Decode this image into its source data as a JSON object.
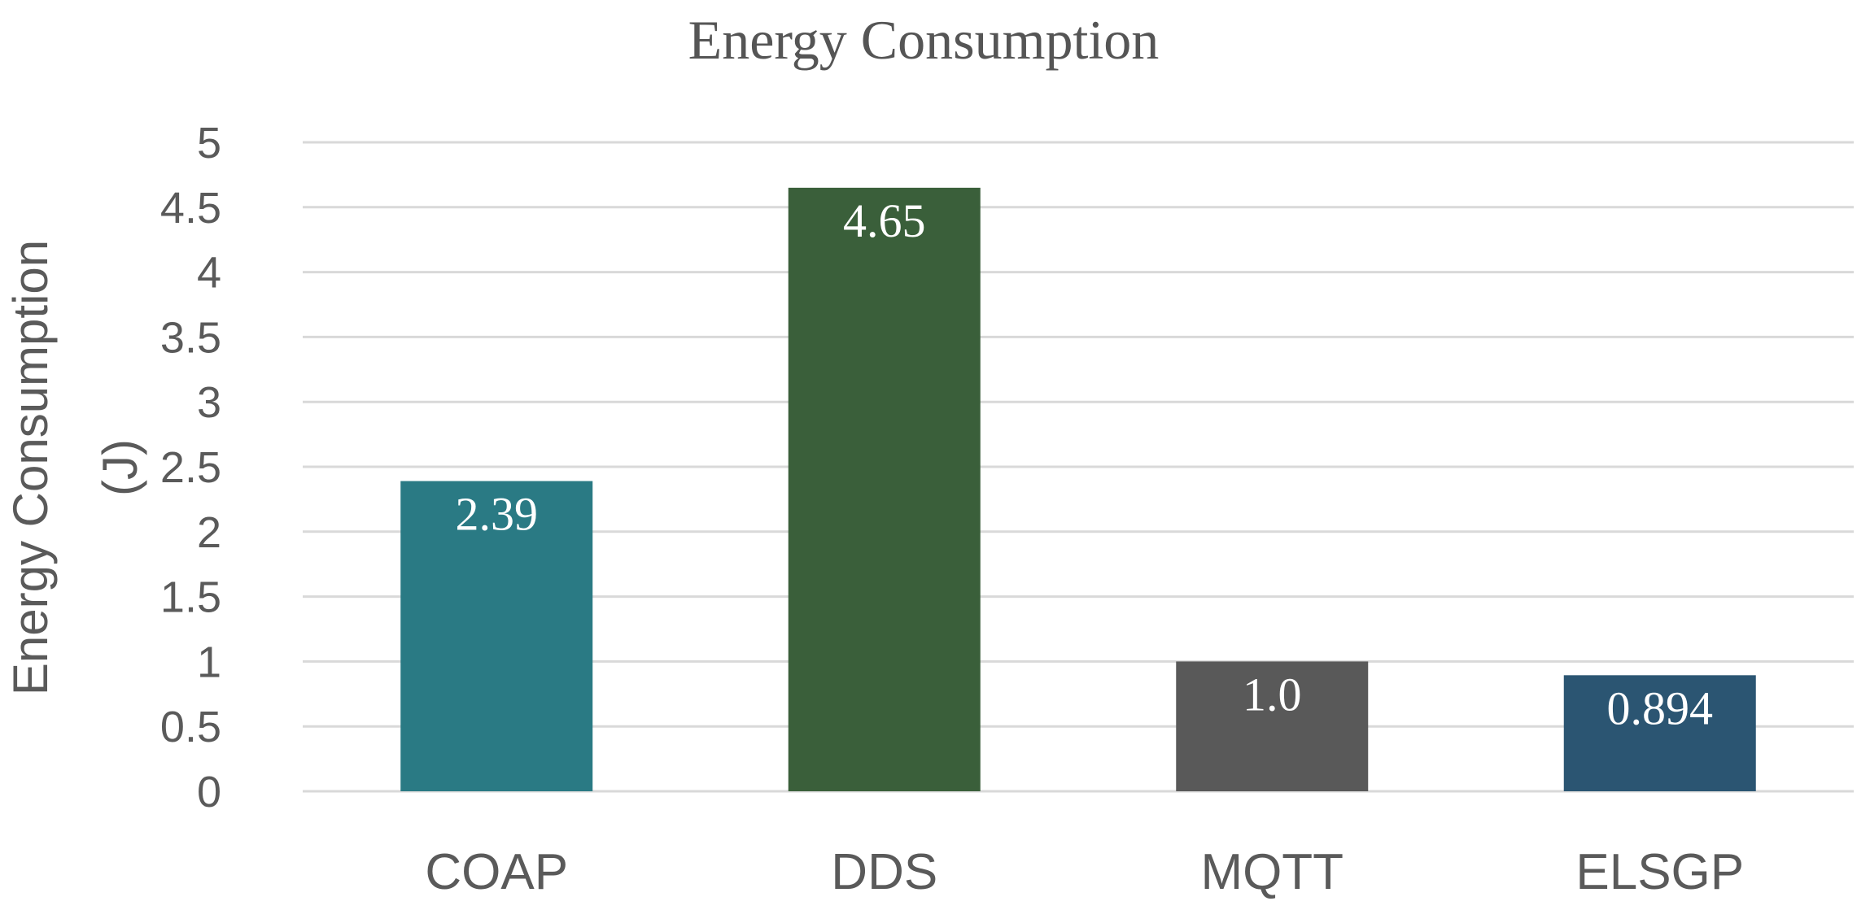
{
  "chart_data": {
    "type": "bar",
    "title": "Energy Consumption",
    "xlabel": "",
    "ylabel_lines": [
      "Energy Consumption",
      "(J)"
    ],
    "ylim": [
      0,
      5
    ],
    "yticks": [
      0,
      0.5,
      1,
      1.5,
      2,
      2.5,
      3,
      3.5,
      4,
      4.5,
      5
    ],
    "ytick_labels": [
      "0",
      "0.5",
      "1",
      "1.5",
      "2",
      "2.5",
      "3",
      "3.5",
      "4",
      "4.5",
      "5"
    ],
    "grid": true,
    "legend": "none",
    "categories": [
      "COAP",
      "DDS",
      "MQTT",
      "ELSGP"
    ],
    "values": [
      2.39,
      4.65,
      1.0,
      0.894
    ],
    "value_labels": [
      "2.39",
      "4.65",
      "1.0",
      "0.894"
    ],
    "colors": [
      "#2a7a84",
      "#3a5f3a",
      "#595959",
      "#2b5572"
    ]
  }
}
